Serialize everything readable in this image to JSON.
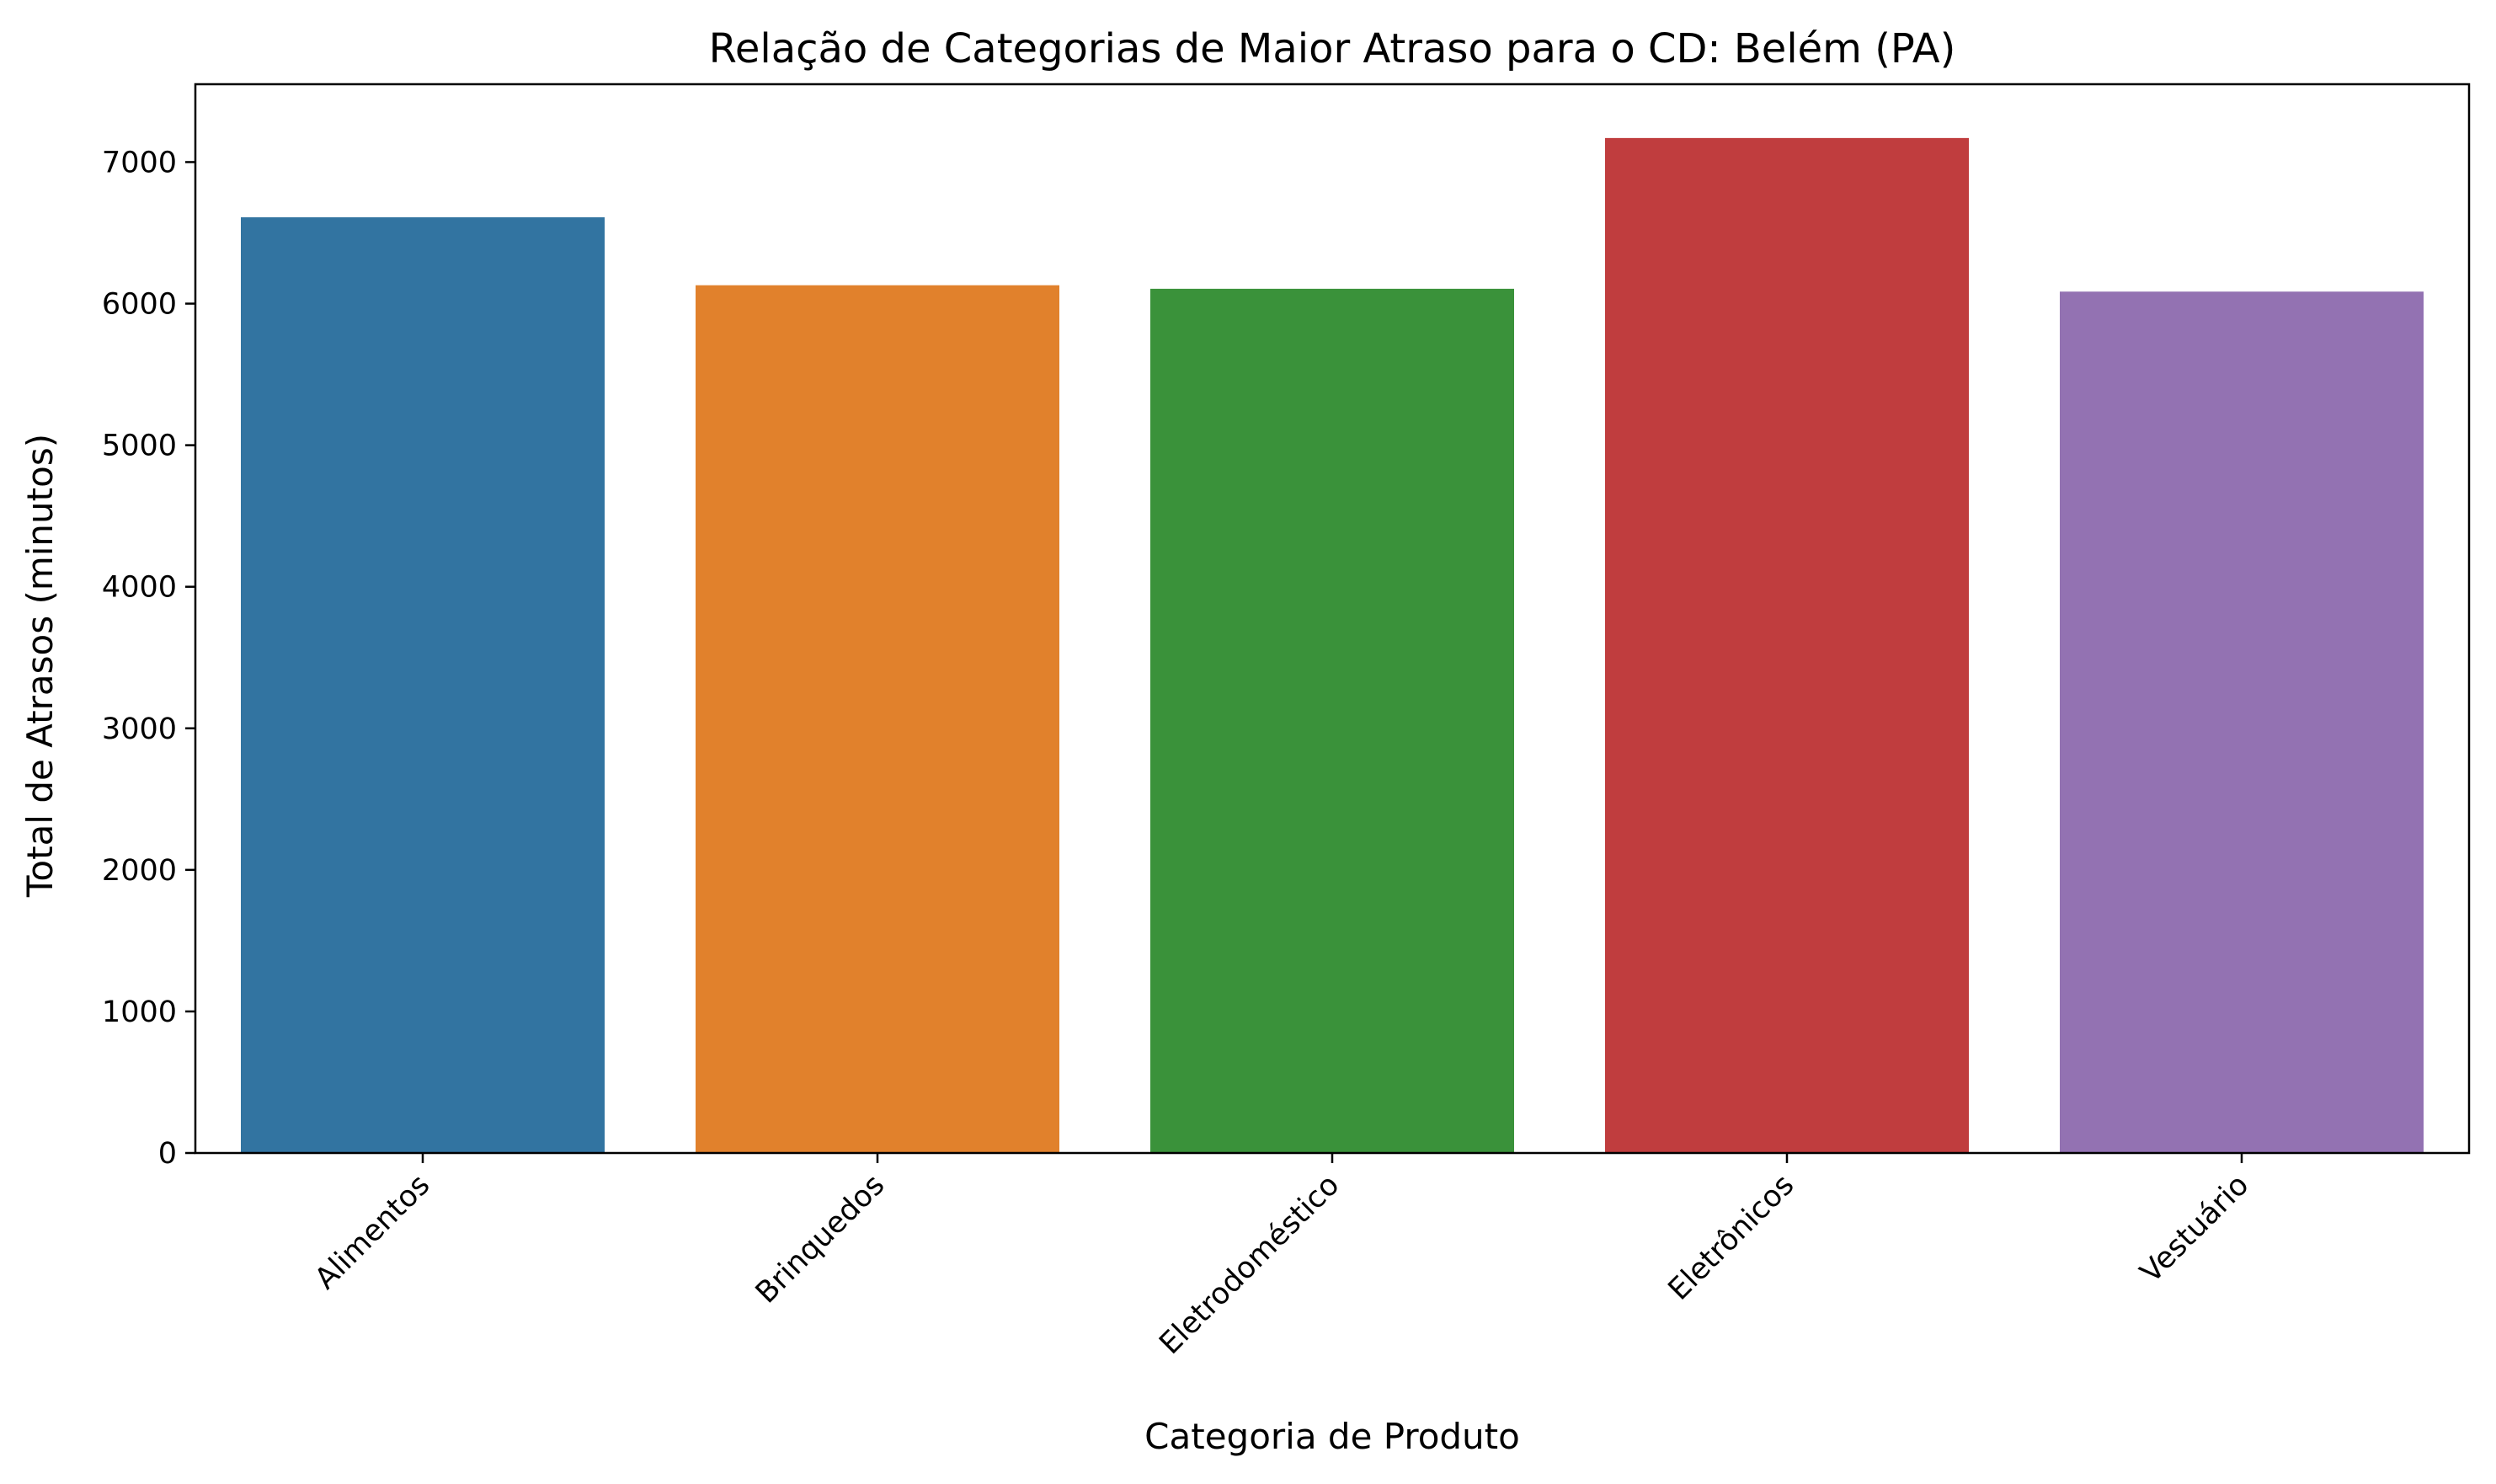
{
  "chart_data": {
    "type": "bar",
    "title": "Relação de Categorias de Maior Atraso para o CD: Belém (PA)",
    "xlabel": "Categoria de Produto",
    "ylabel": "Total de Atrasos (minutos)",
    "categories": [
      "Alimentos",
      "Brinquedos",
      "Eletrodoméstico",
      "Eletrônicos",
      "Vestuário"
    ],
    "values": [
      6610,
      6130,
      6105,
      7170,
      6085
    ],
    "colors": [
      "#3274a1",
      "#e1812c",
      "#3a923a",
      "#c03d3e",
      "#9372b2"
    ],
    "ylim": [
      0,
      7550
    ],
    "yticks": [
      0,
      1000,
      2000,
      3000,
      4000,
      5000,
      6000,
      7000
    ],
    "ytick_labels": [
      "0",
      "1000",
      "2000",
      "3000",
      "4000",
      "5000",
      "6000",
      "7000"
    ],
    "grid": false,
    "legend": "none"
  }
}
